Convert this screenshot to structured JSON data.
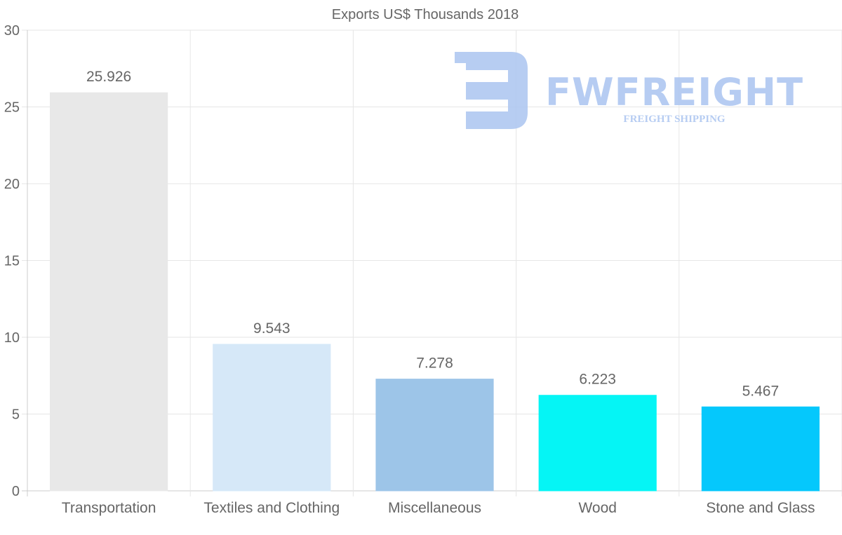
{
  "chart_data": {
    "type": "bar",
    "title": "Exports US$ Thousands 2018",
    "categories": [
      "Transportation",
      "Textiles and Clothing",
      "Miscellaneous",
      "Wood",
      "Stone and Glass"
    ],
    "values": [
      25.926,
      9.543,
      7.278,
      6.223,
      5.467
    ],
    "value_labels": [
      "25.926",
      "9.543",
      "7.278",
      "6.223",
      "5.467"
    ],
    "colors": [
      "#e8e8e8",
      "#d6e8f8",
      "#9dc5e8",
      "#05f5f5",
      "#05c8fc"
    ],
    "xlabel": "",
    "ylabel": "",
    "ylim": [
      0,
      30
    ],
    "yticks": [
      0,
      5,
      10,
      15,
      20,
      25,
      30
    ],
    "grid": true
  },
  "watermark": {
    "brand": "FWFREIGHT",
    "tagline": "FREIGHT SHIPPING",
    "color": "#aac4f0"
  }
}
